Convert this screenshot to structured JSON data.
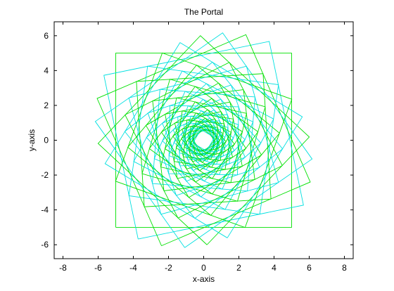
{
  "chart_data": {
    "type": "line",
    "title": "The Portal",
    "xlabel": "x-axis",
    "ylabel": "y-axis",
    "xlim": [
      -8.5,
      8.5
    ],
    "ylim": [
      -6.8,
      6.8
    ],
    "xticks": [
      -8,
      -6,
      -4,
      -2,
      0,
      2,
      4,
      6,
      8
    ],
    "yticks": [
      -6,
      -4,
      -2,
      0,
      2,
      4,
      6
    ],
    "xtick_labels": [
      "-8",
      "-6",
      "-4",
      "-2",
      "0",
      "2",
      "4",
      "6",
      "8"
    ],
    "ytick_labels": [
      "-6",
      "-4",
      "-2",
      "0",
      "2",
      "4",
      "6"
    ],
    "grid": false,
    "legend": "none",
    "series_colors": [
      "#00e000",
      "#00e0e0"
    ],
    "shape": "nested rotated squares (square spiral)",
    "square_count": 60,
    "outer_half_width": 5,
    "inner_half_width": 0.45,
    "total_rotation_deg": 690,
    "outer_square_corners": [
      [
        -5,
        -5
      ],
      [
        5,
        -5
      ],
      [
        5,
        5
      ],
      [
        -5,
        5
      ]
    ]
  }
}
